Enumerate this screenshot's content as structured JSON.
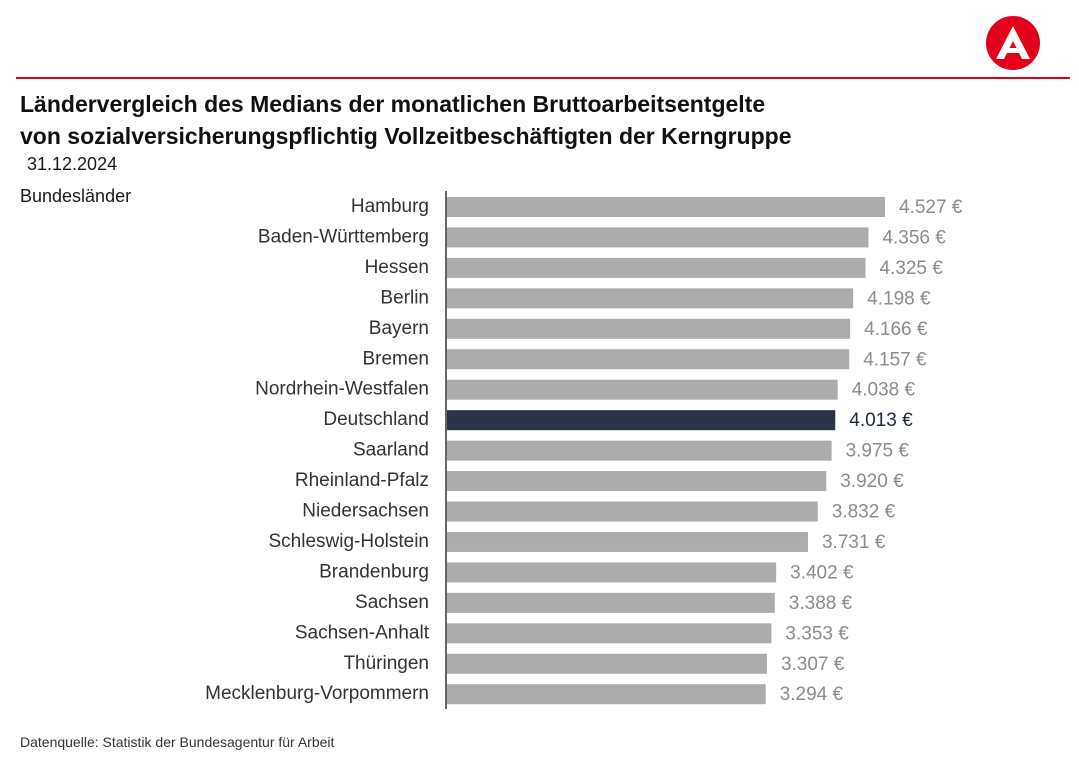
{
  "header": {
    "title_line1": "Ländervergleich des Medians der monatlichen Bruttoarbeitsentgelte",
    "title_line2": "von sozialversicherungspflichtig Vollzeitbeschäftigten der Kerngruppe",
    "date": "31.12.2024",
    "category_label": "Bundesländer"
  },
  "footer": {
    "source": "Datenquelle: Statistik der Bundesagentur für Arbeit"
  },
  "colors": {
    "brand_red": "#e3001b",
    "bar_default": "#acacac",
    "bar_highlight": "#2b3449",
    "value_default": "#8c8c8c",
    "value_highlight": "#1f2a3c"
  },
  "logo_icon": "bundesagentur-logo-icon",
  "chart_data": {
    "type": "bar",
    "orientation": "horizontal",
    "title": "",
    "xlabel": "",
    "ylabel": "",
    "unit": "€",
    "xlim": [
      0,
      4527
    ],
    "grid": false,
    "highlight": "Deutschland",
    "categories": [
      "Hamburg",
      "Baden-Württemberg",
      "Hessen",
      "Berlin",
      "Bayern",
      "Bremen",
      "Nordrhein-Westfalen",
      "Deutschland",
      "Saarland",
      "Rheinland-Pfalz",
      "Niedersachsen",
      "Schleswig-Holstein",
      "Brandenburg",
      "Sachsen",
      "Sachsen-Anhalt",
      "Thüringen",
      "Mecklenburg-Vorpommern"
    ],
    "values": [
      4527,
      4356,
      4325,
      4198,
      4166,
      4157,
      4038,
      4013,
      3975,
      3920,
      3832,
      3731,
      3402,
      3388,
      3353,
      3307,
      3294
    ],
    "value_labels": [
      "4.527 €",
      "4.356 €",
      "4.325 €",
      "4.198 €",
      "4.166 €",
      "4.157 €",
      "4.038 €",
      "4.013 €",
      "3.975 €",
      "3.920 €",
      "3.832 €",
      "3.731 €",
      "3.402 €",
      "3.388 €",
      "3.353 €",
      "3.307 €",
      "3.294 €"
    ]
  }
}
